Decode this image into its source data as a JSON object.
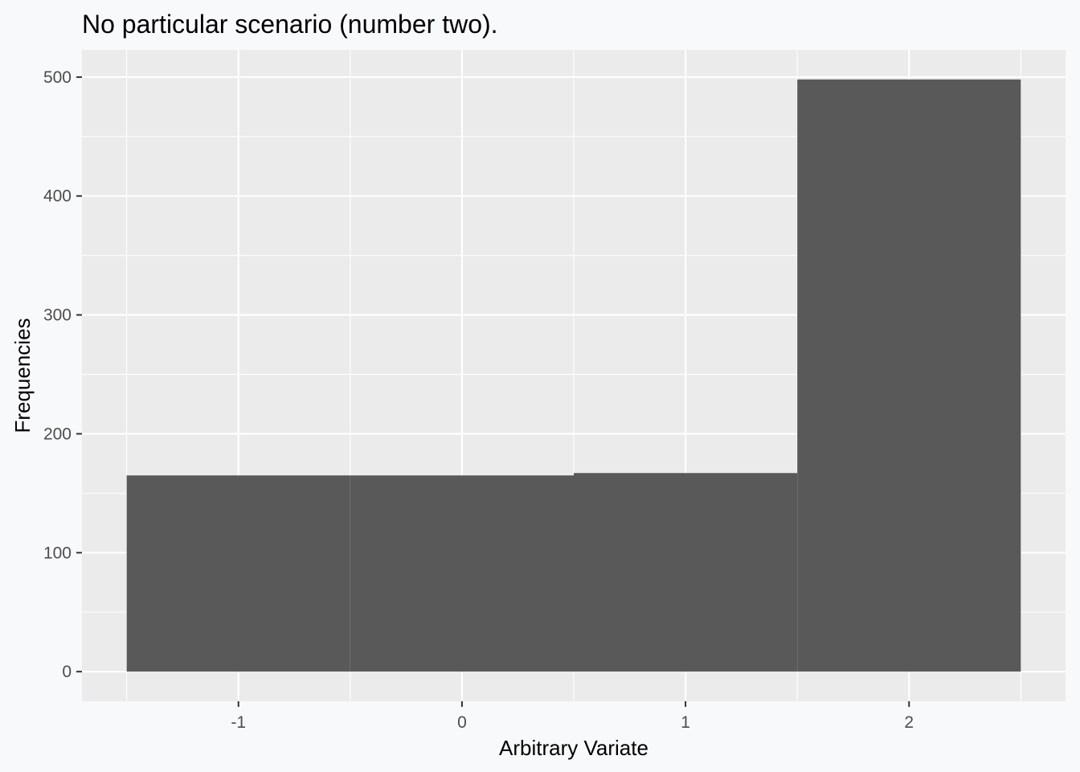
{
  "chart_data": {
    "type": "bar",
    "title": "No particular scenario (number two).",
    "xlabel": "Arbitrary Variate",
    "ylabel": "Frequencies",
    "bins": [
      {
        "x_min": -1.5,
        "x_max": -0.5,
        "count": 165
      },
      {
        "x_min": -0.5,
        "x_max": 0.5,
        "count": 165
      },
      {
        "x_min": 0.5,
        "x_max": 1.5,
        "count": 167
      },
      {
        "x_min": 1.5,
        "x_max": 2.5,
        "count": 498
      }
    ],
    "xlim": [
      -1.7,
      2.7
    ],
    "ylim": [
      -24.9,
      522.9
    ],
    "x_ticks": [
      -1,
      0,
      1,
      2
    ],
    "x_tick_labels": [
      "-1",
      "0",
      "1",
      "2"
    ],
    "y_ticks": [
      0,
      100,
      200,
      300,
      400,
      500
    ],
    "y_tick_labels": [
      "0",
      "100",
      "200",
      "300",
      "400",
      "500"
    ],
    "grid": true,
    "legend": "none",
    "colors": {
      "panel": "#ebebeb",
      "gridline": "#ffffff",
      "bar": "#595959",
      "background": "#f8f9fa"
    }
  }
}
